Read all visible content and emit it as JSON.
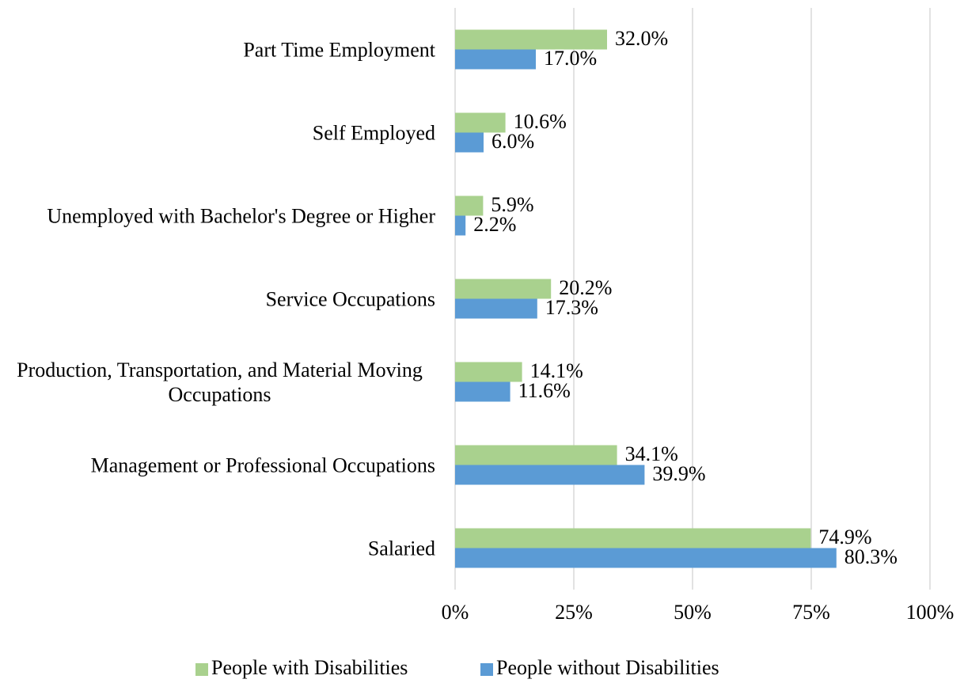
{
  "chart_data": {
    "type": "bar",
    "orientation": "horizontal",
    "categories": [
      "Part Time Employment",
      "Self Employed",
      "Unemployed with Bachelor's Degree or Higher",
      "Service Occupations",
      "Production, Transportation, and Material Moving Occupations",
      "Management or Professional Occupations",
      "Salaried"
    ],
    "series": [
      {
        "name": "People with Disabilities",
        "color": "#a9d18e",
        "values": [
          32.0,
          10.6,
          5.9,
          20.2,
          14.1,
          34.1,
          74.9
        ],
        "value_labels": [
          "32.0%",
          "10.6%",
          "5.9%",
          "20.2%",
          "14.1%",
          "34.1%",
          "74.9%"
        ]
      },
      {
        "name": "People without Disabilities",
        "color": "#5b9bd5",
        "values": [
          17.0,
          6.0,
          2.2,
          17.3,
          11.6,
          39.9,
          80.3
        ],
        "value_labels": [
          "17.0%",
          "6.0%",
          "2.2%",
          "17.3%",
          "11.6%",
          "39.9%",
          "80.3%"
        ]
      }
    ],
    "xlim": [
      0,
      100
    ],
    "xticks": [
      {
        "value": 0,
        "label": "0%"
      },
      {
        "value": 25,
        "label": "25%"
      },
      {
        "value": 50,
        "label": "50%"
      },
      {
        "value": 75,
        "label": "75%"
      },
      {
        "value": 100,
        "label": "100%"
      }
    ],
    "grid": true,
    "legend": "bottom"
  }
}
